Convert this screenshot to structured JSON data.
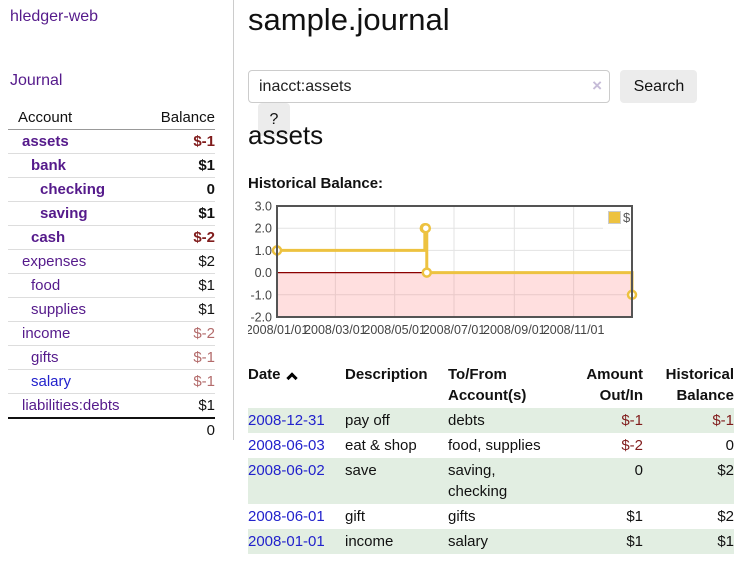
{
  "brand": "hledger-web",
  "nav": {
    "journal": "Journal"
  },
  "sidebar": {
    "header": {
      "account": "Account",
      "balance": "Balance"
    },
    "accounts": [
      {
        "name": "assets",
        "indent": 1,
        "balance": "$-1",
        "bold": true,
        "balance_style": "negative-strong"
      },
      {
        "name": "bank",
        "indent": 2,
        "balance": "$1",
        "bold": true,
        "balance_style": "normal"
      },
      {
        "name": "checking",
        "indent": 3,
        "balance": "0",
        "bold": true,
        "balance_style": "normal"
      },
      {
        "name": "saving",
        "indent": 3,
        "balance": "$1",
        "bold": true,
        "balance_style": "normal"
      },
      {
        "name": "cash",
        "indent": 2,
        "balance": "$-2",
        "bold": true,
        "balance_style": "negative-strong"
      },
      {
        "name": "expenses",
        "indent": 1,
        "balance": "$2",
        "bold": false,
        "balance_style": "normal"
      },
      {
        "name": "food",
        "indent": 2,
        "balance": "$1",
        "bold": false,
        "balance_style": "normal"
      },
      {
        "name": "supplies",
        "indent": 2,
        "balance": "$1",
        "bold": false,
        "balance_style": "normal"
      },
      {
        "name": "income",
        "indent": 1,
        "balance": "$-2",
        "bold": false,
        "balance_style": "negative-soft"
      },
      {
        "name": "gifts",
        "indent": 2,
        "balance": "$-1",
        "bold": false,
        "balance_style": "negative-soft"
      },
      {
        "name": "salary",
        "indent": 2,
        "balance": "$-1",
        "bold": false,
        "balance_style": "negative-soft",
        "link_color": "blue"
      },
      {
        "name": "liabilities:debts",
        "indent": 1,
        "balance": "$1",
        "bold": false,
        "balance_style": "normal"
      }
    ],
    "total": "0"
  },
  "main": {
    "title": "sample.journal",
    "search": {
      "value": "inacct:assets",
      "clear": "×",
      "search_button": "Search",
      "help_button": "?"
    },
    "account_title": "assets",
    "chart_heading": "Historical Balance:"
  },
  "chart_data": {
    "type": "line",
    "step": true,
    "title": "Historical Balance",
    "x_type": "date",
    "xlim": [
      "2008-01-01",
      "2008-12-31"
    ],
    "ylim": [
      -2,
      3
    ],
    "ytick_values": [
      3,
      2,
      1,
      0,
      -1,
      -2
    ],
    "ytick_labels": [
      "3.0",
      "2.0",
      "1.0",
      "0.0",
      "-1.0",
      "-2.0"
    ],
    "xtick_dates": [
      "2008-01-01",
      "2008-03-01",
      "2008-05-01",
      "2008-07-01",
      "2008-09-01",
      "2008-11-01"
    ],
    "xtick_labels": [
      "2008/01/01",
      "2008/03/01",
      "2008/05/01",
      "2008/07/01",
      "2008/09/01",
      "2008/11/01"
    ],
    "series": [
      {
        "name": "$",
        "color": "#edc240",
        "marker_fill": "#ffffff",
        "points": [
          {
            "date": "2008-01-01",
            "value": 1
          },
          {
            "date": "2008-06-01",
            "value": 2
          },
          {
            "date": "2008-06-02",
            "value": 2
          },
          {
            "date": "2008-06-03",
            "value": 0
          },
          {
            "date": "2008-12-31",
            "value": -1
          }
        ]
      }
    ],
    "legend": {
      "label": "$",
      "position": "top-right",
      "box_border": "#cccccc"
    },
    "grid": {
      "border_color": "#545454",
      "line_color": "#e3e3e3",
      "zero_line_color": "#8b0000",
      "negative_fill": "rgba(255,110,110,0.22)",
      "axis_text_color": "#444444"
    }
  },
  "register": {
    "columns": [
      {
        "id": "date",
        "lines": [
          "Date"
        ],
        "align": "left",
        "sorted": "asc"
      },
      {
        "id": "description",
        "lines": [
          "Description"
        ],
        "align": "left"
      },
      {
        "id": "accounts",
        "lines": [
          "To/From",
          "Account(s)"
        ],
        "align": "left"
      },
      {
        "id": "amount",
        "lines": [
          "Amount",
          "Out/In"
        ],
        "align": "right"
      },
      {
        "id": "balance",
        "lines": [
          "Historical",
          "Balance"
        ],
        "align": "right"
      }
    ],
    "rows": [
      {
        "date": "2008-12-31",
        "description": "pay off",
        "accounts_lines": [
          "debts"
        ],
        "amount": "$-1",
        "amount_negative": true,
        "balance": "$-1",
        "balance_negative": true,
        "shaded": true
      },
      {
        "date": "2008-06-03",
        "description": "eat & shop",
        "accounts_lines": [
          "food, supplies"
        ],
        "amount": "$-2",
        "amount_negative": true,
        "balance": "0",
        "balance_negative": false,
        "shaded": false
      },
      {
        "date": "2008-06-02",
        "description": "save",
        "accounts_lines": [
          "saving,",
          "checking"
        ],
        "amount": "0",
        "amount_negative": false,
        "balance": "$2",
        "balance_negative": false,
        "shaded": true
      },
      {
        "date": "2008-06-01",
        "description": "gift",
        "accounts_lines": [
          "gifts"
        ],
        "amount": "$1",
        "amount_negative": false,
        "balance": "$2",
        "balance_negative": false,
        "shaded": false
      },
      {
        "date": "2008-01-01",
        "description": "income",
        "accounts_lines": [
          "salary"
        ],
        "amount": "$1",
        "amount_negative": false,
        "balance": "$1",
        "balance_negative": false,
        "shaded": true
      }
    ]
  },
  "colors": {
    "link_purple": "#551a8b",
    "link_blue": "#2222cc",
    "negative_strong": "#801c1c",
    "negative_soft": "#b36b6b",
    "row_green": "#e2eee2",
    "divider": "#cccccc"
  }
}
